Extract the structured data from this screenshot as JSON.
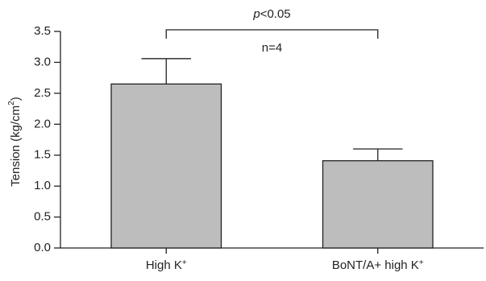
{
  "chart_data": {
    "type": "bar",
    "categories": [
      {
        "base": "High K",
        "sup": "+"
      },
      {
        "base": "BoNT/A+ high K",
        "sup": "+"
      }
    ],
    "values": [
      2.65,
      1.41
    ],
    "errors": [
      0.41,
      0.19
    ],
    "ylabel": {
      "base": "Tension (kg/cm",
      "sup": "2",
      "close": ")"
    },
    "ylim": [
      0,
      3.5
    ],
    "yticks": [
      "0.0",
      "0.5",
      "1.0",
      "1.5",
      "2.0",
      "2.5",
      "3.0",
      "3.5"
    ],
    "annotations": {
      "significance": {
        "p_italic": "p",
        "rest": "<0.05"
      },
      "n": "n=4"
    },
    "grid": false,
    "bar_color": "#bdbdbd",
    "edge_color": "#222222"
  }
}
